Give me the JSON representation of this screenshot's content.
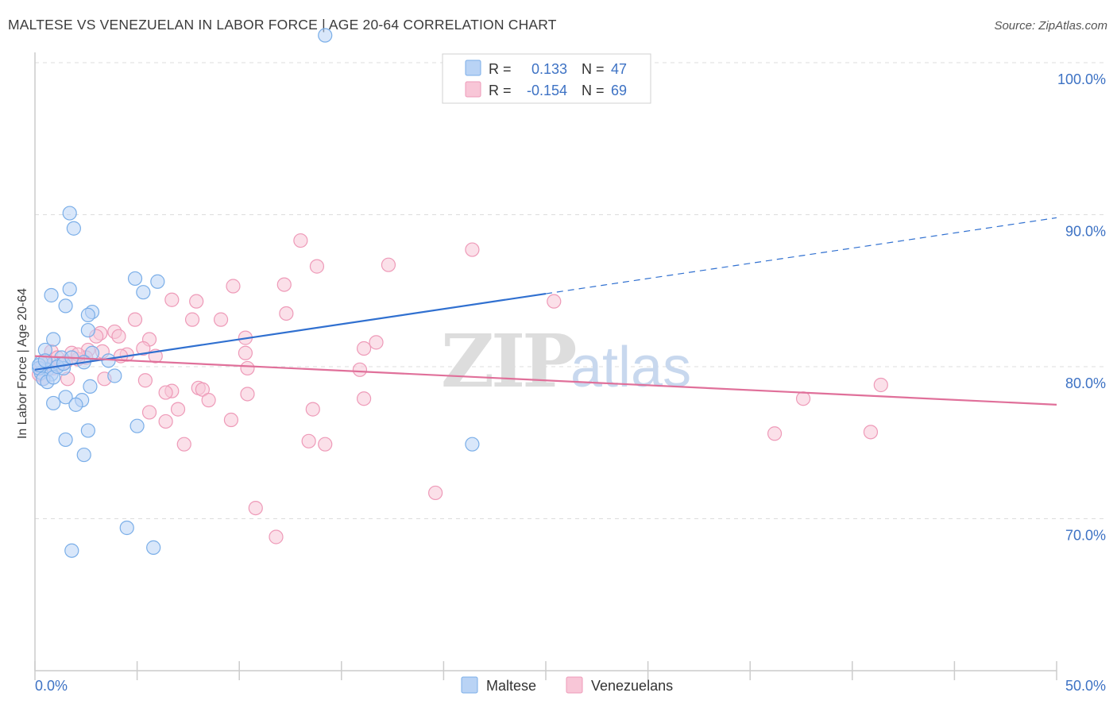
{
  "chart_data": {
    "type": "scatter",
    "title": "MALTESE VS VENEZUELAN IN LABOR FORCE | AGE 20-64 CORRELATION CHART",
    "source": "Source: ZipAtlas.com",
    "ylabel": "In Labor Force | Age 20-64",
    "xlim": [
      0,
      50
    ],
    "ylim": [
      60,
      100
    ],
    "x_tick_labels": [
      "0.0%",
      "50.0%"
    ],
    "y_ticks": [
      {
        "value": 100,
        "label": "100.0%"
      },
      {
        "value": 90,
        "label": "90.0%"
      },
      {
        "value": 80,
        "label": "80.0%"
      },
      {
        "value": 70,
        "label": "70.0%"
      }
    ],
    "grid": "horizontal dashed",
    "legend_position": "top-center",
    "watermark": "ZIPatlas",
    "series": [
      {
        "name": "Maltese",
        "color": "#7aaee8",
        "fill": "#b9d3f5",
        "line_color": "#3070d0",
        "R": "0.133",
        "N": "47",
        "r_label": "R =",
        "n_label": "N =",
        "trend": {
          "x": [
            0,
            25
          ],
          "y": [
            79.8,
            84.8
          ],
          "dashed_to": [
            50,
            89.8
          ]
        },
        "points": [
          [
            14.2,
            101.8
          ],
          [
            1.7,
            90.1
          ],
          [
            1.9,
            89.1
          ],
          [
            4.9,
            85.8
          ],
          [
            6.0,
            85.6
          ],
          [
            1.7,
            85.1
          ],
          [
            5.3,
            84.9
          ],
          [
            0.8,
            84.7
          ],
          [
            1.5,
            84.0
          ],
          [
            2.8,
            83.6
          ],
          [
            2.6,
            83.4
          ],
          [
            2.6,
            82.4
          ],
          [
            0.9,
            81.8
          ],
          [
            0.5,
            81.1
          ],
          [
            2.8,
            80.9
          ],
          [
            1.3,
            80.6
          ],
          [
            0.9,
            80.2
          ],
          [
            0.3,
            80.3
          ],
          [
            1.4,
            79.9
          ],
          [
            0.6,
            79.8
          ],
          [
            0.3,
            79.6
          ],
          [
            0.8,
            79.5
          ],
          [
            0.2,
            79.9
          ],
          [
            3.6,
            80.4
          ],
          [
            2.4,
            80.3
          ],
          [
            0.4,
            79.2
          ],
          [
            0.6,
            79.0
          ],
          [
            0.9,
            79.3
          ],
          [
            3.9,
            79.4
          ],
          [
            2.7,
            78.7
          ],
          [
            1.5,
            78.0
          ],
          [
            0.9,
            77.6
          ],
          [
            2.3,
            77.8
          ],
          [
            2.0,
            77.5
          ],
          [
            2.6,
            75.8
          ],
          [
            5.0,
            76.1
          ],
          [
            1.5,
            75.2
          ],
          [
            2.4,
            74.2
          ],
          [
            21.4,
            74.9
          ],
          [
            4.5,
            69.4
          ],
          [
            1.8,
            67.9
          ],
          [
            5.8,
            68.1
          ],
          [
            0.2,
            80.1
          ],
          [
            0.5,
            80.4
          ],
          [
            1.1,
            80.0
          ],
          [
            1.4,
            80.2
          ],
          [
            1.8,
            80.6
          ]
        ]
      },
      {
        "name": "Venezuelans",
        "color": "#ee9ab8",
        "fill": "#f8c6d7",
        "line_color": "#e0709a",
        "R": "-0.154",
        "N": "69",
        "r_label": "R =",
        "n_label": "N =",
        "trend": {
          "x": [
            0,
            50
          ],
          "y": [
            80.7,
            77.5
          ]
        },
        "points": [
          [
            13.0,
            88.3
          ],
          [
            21.4,
            87.7
          ],
          [
            17.3,
            86.7
          ],
          [
            13.8,
            86.6
          ],
          [
            9.7,
            85.3
          ],
          [
            12.2,
            85.4
          ],
          [
            7.9,
            84.3
          ],
          [
            6.7,
            84.4
          ],
          [
            25.4,
            84.3
          ],
          [
            12.3,
            83.5
          ],
          [
            4.9,
            83.1
          ],
          [
            7.7,
            83.1
          ],
          [
            9.1,
            83.1
          ],
          [
            3.9,
            82.3
          ],
          [
            3.2,
            82.2
          ],
          [
            4.1,
            82.0
          ],
          [
            3.0,
            82.0
          ],
          [
            10.3,
            81.9
          ],
          [
            5.6,
            81.8
          ],
          [
            16.7,
            81.6
          ],
          [
            16.1,
            81.2
          ],
          [
            5.3,
            81.2
          ],
          [
            3.3,
            81.0
          ],
          [
            1.8,
            80.9
          ],
          [
            0.8,
            81.0
          ],
          [
            10.3,
            80.9
          ],
          [
            2.6,
            81.1
          ],
          [
            4.5,
            80.8
          ],
          [
            5.9,
            80.7
          ],
          [
            2.5,
            80.6
          ],
          [
            0.5,
            80.4
          ],
          [
            1.3,
            80.2
          ],
          [
            2.1,
            80.5
          ],
          [
            0.9,
            79.9
          ],
          [
            10.4,
            79.9
          ],
          [
            15.9,
            79.8
          ],
          [
            0.4,
            79.2
          ],
          [
            3.4,
            79.2
          ],
          [
            5.4,
            79.1
          ],
          [
            1.6,
            79.2
          ],
          [
            8.0,
            78.6
          ],
          [
            8.2,
            78.5
          ],
          [
            6.7,
            78.4
          ],
          [
            6.4,
            78.3
          ],
          [
            10.4,
            78.2
          ],
          [
            16.1,
            77.9
          ],
          [
            8.5,
            77.8
          ],
          [
            37.6,
            77.9
          ],
          [
            41.4,
            78.8
          ],
          [
            7.0,
            77.2
          ],
          [
            13.6,
            77.2
          ],
          [
            5.6,
            77.0
          ],
          [
            9.6,
            76.5
          ],
          [
            6.4,
            76.4
          ],
          [
            36.2,
            75.6
          ],
          [
            40.9,
            75.7
          ],
          [
            13.4,
            75.1
          ],
          [
            7.3,
            74.9
          ],
          [
            14.2,
            74.9
          ],
          [
            19.6,
            71.7
          ],
          [
            10.8,
            70.7
          ],
          [
            11.8,
            68.8
          ],
          [
            0.3,
            79.9
          ],
          [
            0.6,
            80.2
          ],
          [
            1.1,
            80.6
          ],
          [
            1.5,
            80.3
          ],
          [
            2.1,
            80.8
          ],
          [
            0.2,
            79.5
          ],
          [
            4.2,
            80.7
          ]
        ]
      }
    ]
  }
}
